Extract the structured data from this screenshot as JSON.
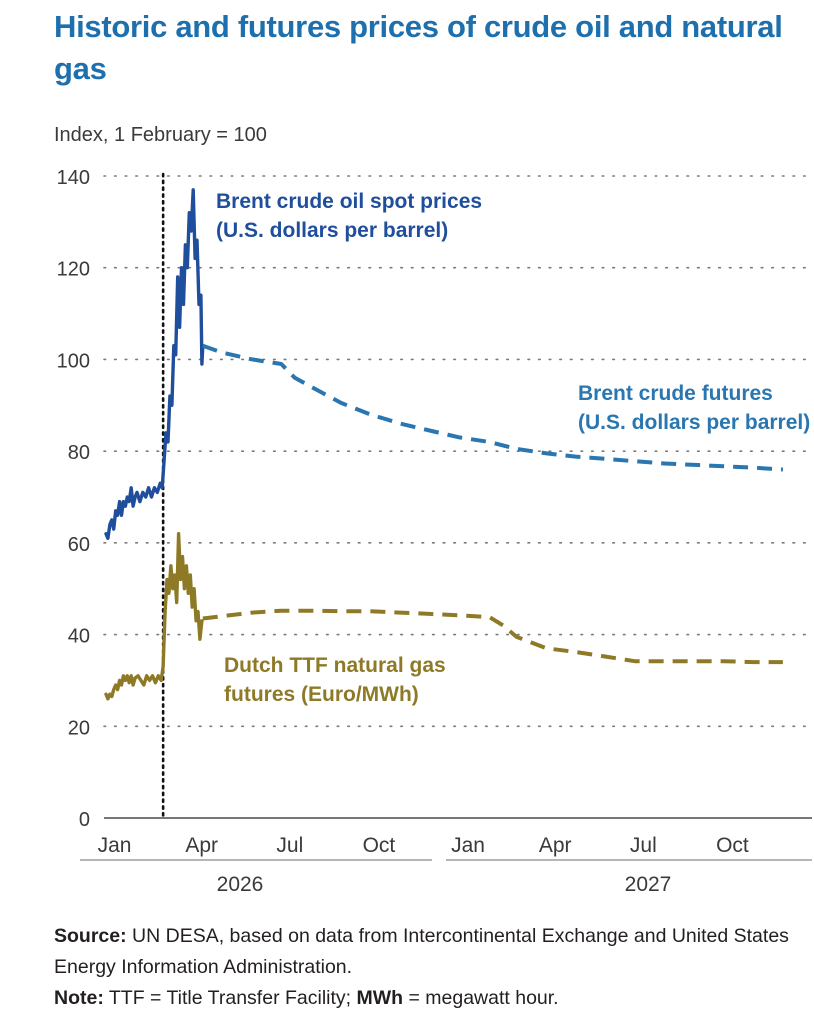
{
  "chart_data": {
    "type": "line",
    "title": "Historic and futures prices of crude oil and natural gas",
    "ylabel": "Index, 1 February = 100",
    "ylim": [
      0,
      140
    ],
    "y_ticks": [
      "0",
      "20",
      "40",
      "60",
      "80",
      "100",
      "120",
      "140"
    ],
    "x_ticks": [
      "Jan",
      "Apr",
      "Jul",
      "Oct",
      "Jan",
      "Apr",
      "Jul",
      "Oct"
    ],
    "year_labels": [
      "2026",
      "2027"
    ],
    "grid": true,
    "vertical_marker": "2026-03-01",
    "series": [
      {
        "name": "Brent crude oil spot prices (U.S. dollars per barrel)",
        "name_lines": [
          "Brent crude oil spot prices",
          "(U.S. dollars per barrel)"
        ],
        "style": "solid",
        "color": "#1f4e9c",
        "points": [
          [
            "2026-01-01",
            62
          ],
          [
            "2026-01-03",
            61
          ],
          [
            "2026-01-05",
            64
          ],
          [
            "2026-01-07",
            65
          ],
          [
            "2026-01-09",
            63
          ],
          [
            "2026-01-11",
            67
          ],
          [
            "2026-01-13",
            66
          ],
          [
            "2026-01-15",
            69
          ],
          [
            "2026-01-17",
            66
          ],
          [
            "2026-01-19",
            69
          ],
          [
            "2026-01-21",
            68
          ],
          [
            "2026-01-23",
            70
          ],
          [
            "2026-01-25",
            69
          ],
          [
            "2026-01-27",
            72
          ],
          [
            "2026-01-29",
            68
          ],
          [
            "2026-01-31",
            70
          ],
          [
            "2026-02-02",
            71
          ],
          [
            "2026-02-05",
            69
          ],
          [
            "2026-02-08",
            71
          ],
          [
            "2026-02-11",
            70
          ],
          [
            "2026-02-14",
            72
          ],
          [
            "2026-02-17",
            70
          ],
          [
            "2026-02-20",
            72
          ],
          [
            "2026-02-23",
            71
          ],
          [
            "2026-02-26",
            73
          ],
          [
            "2026-02-28",
            72
          ],
          [
            "2026-03-02",
            78
          ],
          [
            "2026-03-04",
            84
          ],
          [
            "2026-03-06",
            82
          ],
          [
            "2026-03-08",
            92
          ],
          [
            "2026-03-10",
            90
          ],
          [
            "2026-03-12",
            103
          ],
          [
            "2026-03-14",
            101
          ],
          [
            "2026-03-16",
            118
          ],
          [
            "2026-03-18",
            107
          ],
          [
            "2026-03-20",
            120
          ],
          [
            "2026-03-22",
            112
          ],
          [
            "2026-03-24",
            125
          ],
          [
            "2026-03-26",
            120
          ],
          [
            "2026-03-28",
            132
          ],
          [
            "2026-03-30",
            128
          ],
          [
            "2026-04-01",
            137
          ],
          [
            "2026-04-03",
            122
          ],
          [
            "2026-04-05",
            126
          ],
          [
            "2026-04-07",
            112
          ],
          [
            "2026-04-09",
            114
          ],
          [
            "2026-04-10",
            99
          ],
          [
            "2026-04-11",
            103
          ]
        ]
      },
      {
        "name": "Brent crude futures (U.S. dollars per barrel)",
        "name_lines": [
          "Brent crude futures",
          "(U.S. dollars per barrel)"
        ],
        "style": "dashed",
        "color": "#2a76b0",
        "points": [
          [
            "2026-04-11",
            103
          ],
          [
            "2026-05-01",
            101.5
          ],
          [
            "2026-06-01",
            100
          ],
          [
            "2026-07-01",
            99
          ],
          [
            "2026-07-15",
            96
          ],
          [
            "2026-08-01",
            94
          ],
          [
            "2026-09-01",
            90.5
          ],
          [
            "2026-10-01",
            88
          ],
          [
            "2026-11-01",
            86
          ],
          [
            "2026-12-01",
            84.5
          ],
          [
            "2027-01-01",
            83
          ],
          [
            "2027-02-01",
            82
          ],
          [
            "2027-03-01",
            80.5
          ],
          [
            "2027-04-01",
            79.5
          ],
          [
            "2027-05-01",
            78.8
          ],
          [
            "2027-06-01",
            78.3
          ],
          [
            "2027-07-01",
            77.8
          ],
          [
            "2027-08-01",
            77.3
          ],
          [
            "2027-09-01",
            77
          ],
          [
            "2027-10-01",
            76.7
          ],
          [
            "2027-11-01",
            76.4
          ],
          [
            "2027-12-01",
            76
          ]
        ]
      },
      {
        "name": "Dutch TTF natural gas futures (Euro/MWh)",
        "name_lines": [
          "Dutch TTF natural gas",
          "futures (Euro/MWh)"
        ],
        "style": "solid",
        "color": "#8e7a26",
        "points": [
          [
            "2026-01-01",
            27
          ],
          [
            "2026-01-03",
            26
          ],
          [
            "2026-01-05",
            27
          ],
          [
            "2026-01-07",
            26.5
          ],
          [
            "2026-01-09",
            28
          ],
          [
            "2026-01-11",
            29
          ],
          [
            "2026-01-13",
            28
          ],
          [
            "2026-01-15",
            30
          ],
          [
            "2026-01-17",
            29
          ],
          [
            "2026-01-19",
            31
          ],
          [
            "2026-01-21",
            30
          ],
          [
            "2026-01-23",
            31
          ],
          [
            "2026-01-25",
            29.5
          ],
          [
            "2026-01-27",
            31
          ],
          [
            "2026-01-29",
            29
          ],
          [
            "2026-01-31",
            30.5
          ],
          [
            "2026-02-03",
            31
          ],
          [
            "2026-02-06",
            30
          ],
          [
            "2026-02-09",
            29
          ],
          [
            "2026-02-12",
            31
          ],
          [
            "2026-02-15",
            30
          ],
          [
            "2026-02-18",
            31
          ],
          [
            "2026-02-21",
            29.5
          ],
          [
            "2026-02-24",
            31
          ],
          [
            "2026-02-27",
            30
          ],
          [
            "2026-03-01",
            33
          ],
          [
            "2026-03-03",
            45
          ],
          [
            "2026-03-05",
            52
          ],
          [
            "2026-03-07",
            49
          ],
          [
            "2026-03-09",
            55
          ],
          [
            "2026-03-11",
            50
          ],
          [
            "2026-03-13",
            53
          ],
          [
            "2026-03-15",
            47
          ],
          [
            "2026-03-17",
            62
          ],
          [
            "2026-03-19",
            52
          ],
          [
            "2026-03-21",
            57
          ],
          [
            "2026-03-23",
            50
          ],
          [
            "2026-03-25",
            55
          ],
          [
            "2026-03-27",
            49
          ],
          [
            "2026-03-29",
            53
          ],
          [
            "2026-03-31",
            46
          ],
          [
            "2026-04-02",
            50
          ],
          [
            "2026-04-04",
            43
          ],
          [
            "2026-04-06",
            45
          ],
          [
            "2026-04-08",
            39
          ],
          [
            "2026-04-10",
            43
          ]
        ]
      },
      {
        "name": "Dutch TTF natural gas futures (Euro/MWh)",
        "style": "dashed",
        "color": "#8e7a26",
        "continuation": true,
        "points": [
          [
            "2026-04-11",
            43.5
          ],
          [
            "2026-05-01",
            44
          ],
          [
            "2026-06-01",
            44.8
          ],
          [
            "2026-07-01",
            45.2
          ],
          [
            "2026-08-01",
            45.2
          ],
          [
            "2026-09-01",
            45.1
          ],
          [
            "2026-10-01",
            45.1
          ],
          [
            "2026-11-01",
            44.8
          ],
          [
            "2026-12-01",
            44.5
          ],
          [
            "2027-01-01",
            44.2
          ],
          [
            "2027-02-01",
            43.8
          ],
          [
            "2027-02-15",
            42
          ],
          [
            "2027-03-01",
            39.5
          ],
          [
            "2027-04-01",
            37
          ],
          [
            "2027-05-01",
            36.2
          ],
          [
            "2027-06-01",
            35.2
          ],
          [
            "2027-07-01",
            34.2
          ],
          [
            "2027-08-01",
            34.2
          ],
          [
            "2027-09-01",
            34.2
          ],
          [
            "2027-10-01",
            34.2
          ],
          [
            "2027-11-01",
            34
          ],
          [
            "2027-12-01",
            34
          ]
        ]
      }
    ]
  },
  "notes": {
    "source_label": "Source:",
    "source_text": " UN DESA, based on data from Intercontinental Exchange and United States Energy Information Administration.",
    "note_label": "Note:",
    "note_text_1": " TTF = Title Transfer Facility; ",
    "note_mwh_label": "MWh",
    "note_text_2": " = megawatt hour."
  }
}
